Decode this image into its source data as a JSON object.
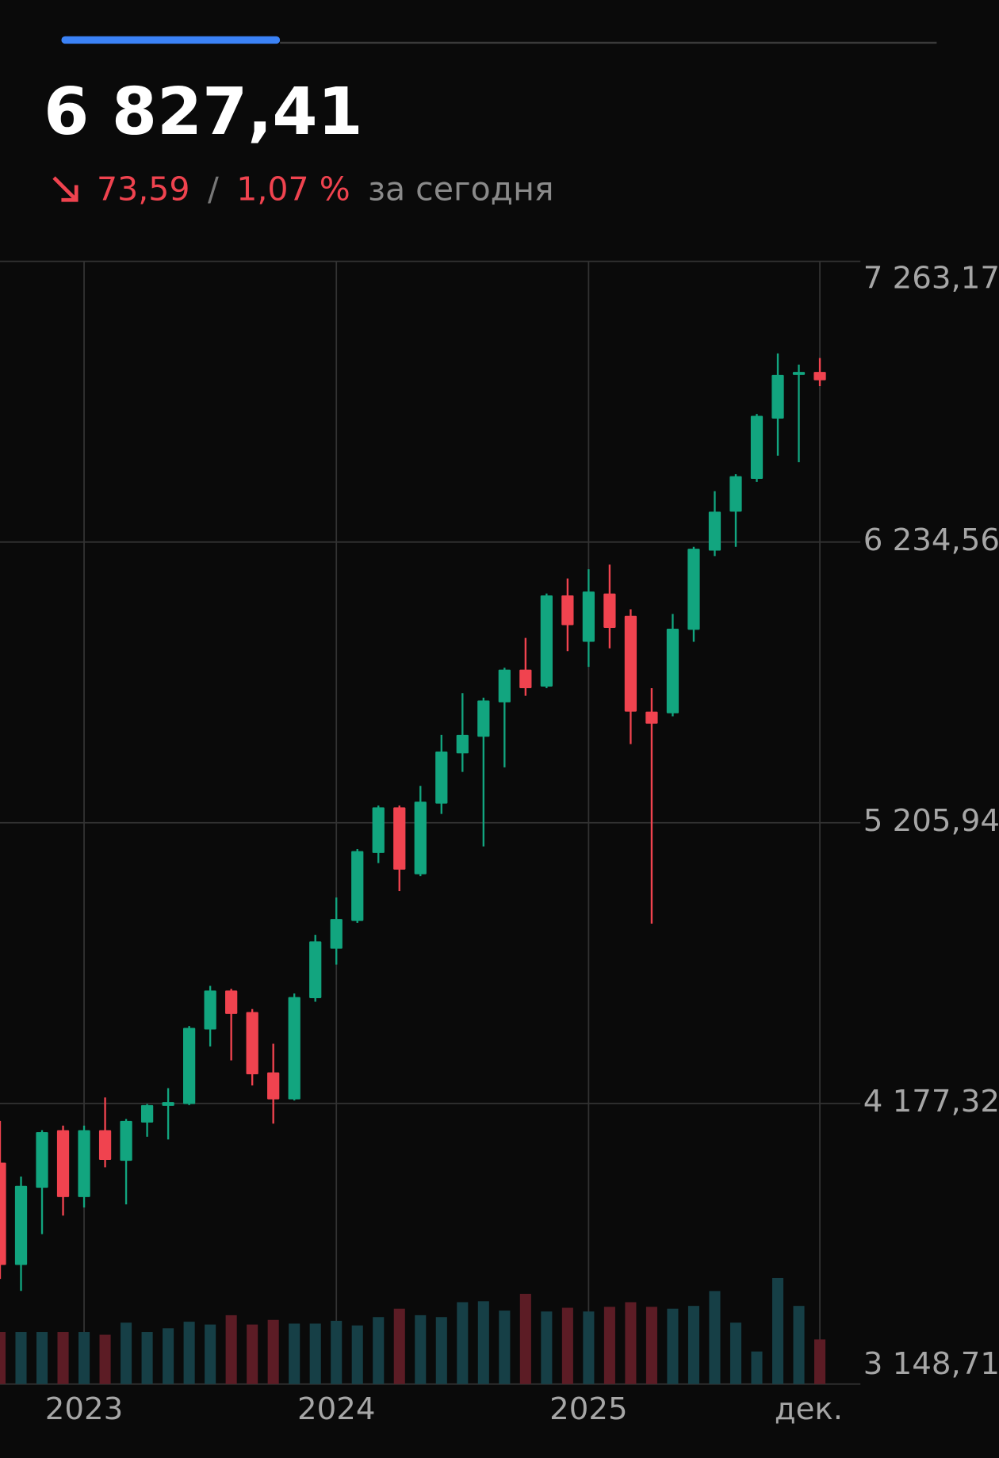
{
  "header": {
    "price": "6 827,41",
    "change": "73,59",
    "separator": "/",
    "change_percent": "1,07 %",
    "period": "за сегодня"
  },
  "chart_data": {
    "type": "candlestick",
    "categories": [
      null,
      null,
      null,
      null,
      "2023",
      null,
      null,
      null,
      null,
      null,
      null,
      null,
      null,
      null,
      null,
      null,
      "2024",
      null,
      null,
      null,
      null,
      null,
      null,
      null,
      null,
      null,
      null,
      null,
      "2025",
      null,
      null,
      null,
      null,
      null,
      null,
      null,
      null,
      null,
      null,
      "дек."
    ],
    "open": [
      3960,
      3585,
      3868,
      4079,
      3834,
      4079,
      3967,
      4107,
      4168,
      4175,
      4448,
      4591,
      4512,
      4291,
      4192,
      4563,
      4744,
      4846,
      5095,
      5262,
      5017,
      5276,
      5460,
      5521,
      5647,
      5767,
      5705,
      6039,
      5869,
      6046,
      5964,
      5613,
      5607,
      5913,
      6203,
      6346,
      6466,
      6687,
      6847,
      6858
    ],
    "high": [
      4113,
      3909,
      4079,
      4096,
      4096,
      4199,
      4120,
      4175,
      4233,
      4461,
      4608,
      4597,
      4523,
      4396,
      4580,
      4795,
      4932,
      5109,
      5269,
      5269,
      5341,
      5528,
      5681,
      5664,
      5774,
      5883,
      6046,
      6101,
      6135,
      6152,
      5988,
      5699,
      5971,
      6217,
      6421,
      6483,
      6704,
      6926,
      6885,
      6909
    ],
    "low": [
      3534,
      3490,
      3698,
      3766,
      3796,
      3943,
      3807,
      4055,
      4045,
      4171,
      4386,
      4335,
      4243,
      4103,
      4188,
      4550,
      4686,
      4839,
      5058,
      4955,
      5010,
      5238,
      5392,
      5119,
      5409,
      5671,
      5699,
      5835,
      5777,
      5845,
      5494,
      4836,
      5596,
      5869,
      6183,
      6217,
      6455,
      6551,
      6527,
      6806
    ],
    "close": [
      3585,
      3875,
      4072,
      3834,
      4079,
      3970,
      4113,
      4171,
      4182,
      4454,
      4591,
      4505,
      4284,
      4192,
      4567,
      4771,
      4853,
      5102,
      5262,
      5034,
      5283,
      5467,
      5528,
      5654,
      5767,
      5699,
      6039,
      5930,
      6053,
      5920,
      5613,
      5569,
      5917,
      6210,
      6346,
      6476,
      6697,
      6847,
      6858,
      6827.41
    ],
    "volume": [
      56,
      56,
      56,
      56,
      56,
      53,
      66,
      56,
      60,
      67,
      64,
      74,
      64,
      69,
      65,
      65,
      68,
      63,
      72,
      81,
      74,
      72,
      88,
      89,
      79,
      97,
      78,
      82,
      78,
      83,
      88,
      83,
      81,
      84,
      100,
      66,
      35,
      114,
      84,
      48
    ],
    "ylim": [
      3148.71,
      7263.17
    ],
    "yticks": [
      {
        "value": 3148.71,
        "label": "3 148,71"
      },
      {
        "value": 4177.32,
        "label": "4 177,32"
      },
      {
        "value": 5205.94,
        "label": "5 205,94"
      },
      {
        "value": 6234.56,
        "label": "6 234,56"
      },
      {
        "value": 7263.17,
        "label": "7 263,17"
      }
    ],
    "grid": true,
    "up_color": "#12a57f",
    "down_color": "#f0434f",
    "volume_up_color": "#163f46",
    "volume_down_color": "#5c1c25"
  }
}
